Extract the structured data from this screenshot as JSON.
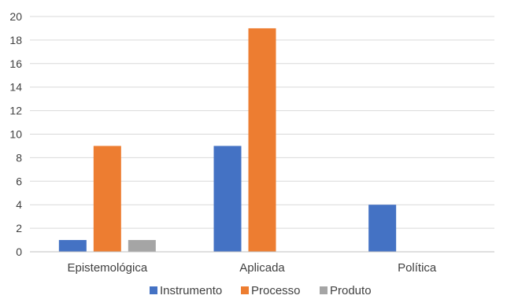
{
  "chart_data": {
    "type": "bar",
    "categories": [
      "Epistemológica",
      "Aplicada",
      "Política"
    ],
    "series": [
      {
        "name": "Instrumento",
        "values": [
          1,
          9,
          4
        ],
        "color": "#4472c4"
      },
      {
        "name": "Processo",
        "values": [
          9,
          19,
          0
        ],
        "color": "#ed7d31"
      },
      {
        "name": "Produto",
        "values": [
          1,
          0,
          0
        ],
        "color": "#a5a5a5"
      }
    ],
    "ylim": [
      0,
      20
    ],
    "yticks": [
      "0",
      "2",
      "4",
      "6",
      "8",
      "10",
      "12",
      "14",
      "16",
      "18",
      "20"
    ],
    "grid": true,
    "legend_position": "bottom"
  }
}
